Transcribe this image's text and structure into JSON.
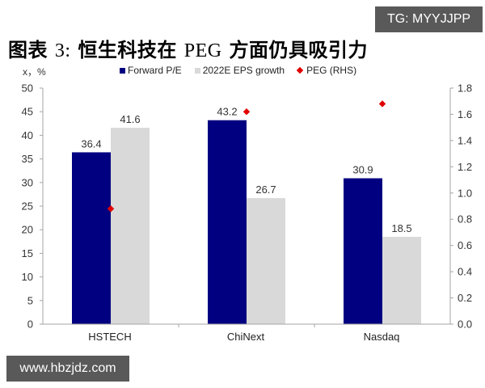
{
  "watermarks": {
    "top_right": "TG: MYYJJPP",
    "bottom_left": "www.hbzjdz.com"
  },
  "title": {
    "prefix": "图表",
    "number": "3:",
    "part1": "恒生科技在",
    "peg": "PEG",
    "part2": "方面仍具吸引力"
  },
  "unit_label": "x，%",
  "colors": {
    "forward_pe": "#000080",
    "eps_growth": "#d9d9d9",
    "peg": "#e00000",
    "axis": "#a6a6a6"
  },
  "legend": [
    {
      "label": "Forward P/E",
      "type": "square",
      "color": "#000080"
    },
    {
      "label": "2022E EPS growth",
      "type": "square",
      "color": "#d9d9d9"
    },
    {
      "label": "PEG (RHS)",
      "type": "diamond",
      "color": "#e00000"
    }
  ],
  "chart_data": {
    "type": "bar",
    "title": "图表 3: 恒生科技在 PEG 方面仍具吸引力",
    "categories": [
      "HSTECH",
      "ChiNext",
      "Nasdaq"
    ],
    "series": [
      {
        "name": "Forward P/E",
        "type": "bar",
        "axis": "left",
        "values": [
          36.4,
          43.2,
          30.9
        ]
      },
      {
        "name": "2022E EPS growth",
        "type": "bar",
        "axis": "left",
        "values": [
          41.6,
          26.7,
          18.5
        ]
      },
      {
        "name": "PEG (RHS)",
        "type": "scatter",
        "axis": "right",
        "values": [
          0.88,
          1.62,
          1.68
        ]
      }
    ],
    "ylabel": "x，%",
    "ylim": [
      0,
      50
    ],
    "y_ticks": [
      "0",
      "5",
      "10",
      "15",
      "20",
      "25",
      "30",
      "35",
      "40",
      "45",
      "50"
    ],
    "y2lim": [
      0,
      1.8
    ],
    "y2_ticks": [
      "0.0",
      "0.2",
      "0.4",
      "0.6",
      "0.8",
      "1.0",
      "1.2",
      "1.4",
      "1.6",
      "1.8"
    ],
    "data_labels": {
      "Forward P/E": [
        "36.4",
        "43.2",
        "30.9"
      ],
      "2022E EPS growth": [
        "41.6",
        "26.7",
        "18.5"
      ]
    },
    "grid": false,
    "legend_position": "top"
  }
}
